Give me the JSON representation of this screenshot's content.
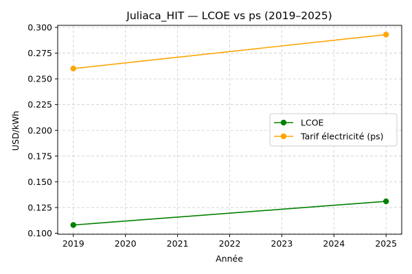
{
  "chart_data": {
    "type": "line",
    "title": "Juliaca_HIT — LCOE vs ps (2019–2025)",
    "xlabel": "Année",
    "ylabel": "USD/kWh",
    "xlim": [
      2018.7,
      2025.3
    ],
    "ylim": [
      0.099,
      0.302
    ],
    "x_ticks": [
      2019,
      2020,
      2021,
      2022,
      2023,
      2024,
      2025
    ],
    "y_ticks": [
      "0.100",
      "0.125",
      "0.150",
      "0.175",
      "0.200",
      "0.225",
      "0.250",
      "0.275",
      "0.300"
    ],
    "grid": true,
    "legend_position": "center-right",
    "series": [
      {
        "name": "LCOE",
        "color": "#008000",
        "x": [
          2019,
          2025
        ],
        "y": [
          0.108,
          0.131
        ]
      },
      {
        "name": "Tarif électricité (ps)",
        "color": "#ffa500",
        "x": [
          2019,
          2025
        ],
        "y": [
          0.26,
          0.293
        ]
      }
    ]
  }
}
